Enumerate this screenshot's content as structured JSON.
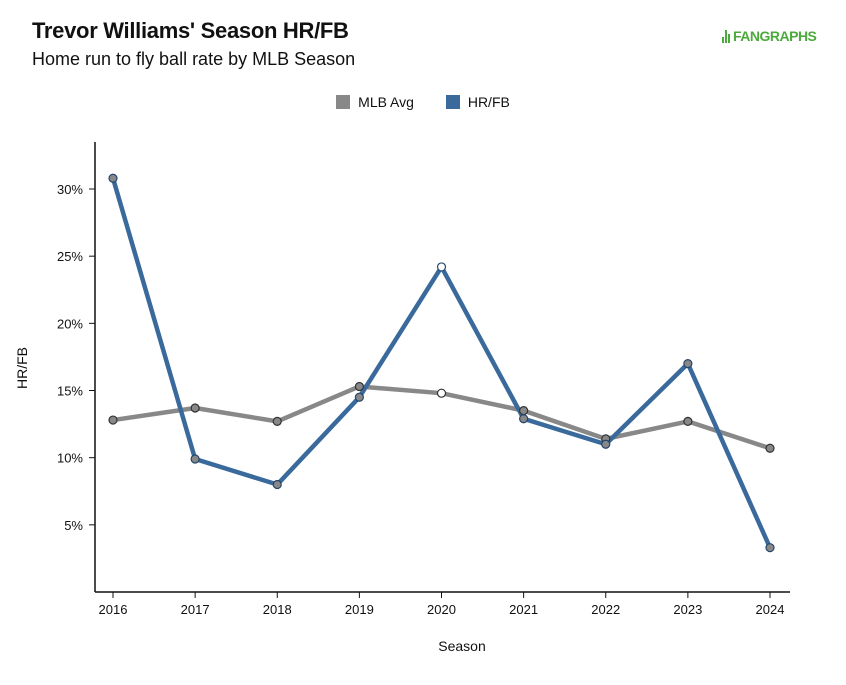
{
  "header": {
    "title": "Trevor Williams' Season HR/FB",
    "subtitle": "Home run to fly ball rate by MLB Season",
    "brand": "FANGRAPHS"
  },
  "colors": {
    "mlb_avg": "#888888",
    "hr_fb": "#3a6a9c",
    "point_fill": "#888888",
    "point_hollow": "#ffffff",
    "axis": "#111111"
  },
  "chart_data": {
    "type": "line",
    "title": "Trevor Williams' Season HR/FB",
    "subtitle": "Home run to fly ball rate by MLB Season",
    "xlabel": "Season",
    "ylabel": "HR/FB",
    "categories": [
      "2016",
      "2017",
      "2018",
      "2019",
      "2020",
      "2021",
      "2022",
      "2023",
      "2024"
    ],
    "ylim": [
      0,
      0.335
    ],
    "yticks": [
      0.05,
      0.1,
      0.15,
      0.2,
      0.25,
      0.3
    ],
    "ytick_labels": [
      "5%",
      "10%",
      "15%",
      "20%",
      "25%",
      "30%"
    ],
    "legend_position": "top-center",
    "grid": false,
    "series": [
      {
        "name": "MLB Avg",
        "values": [
          0.128,
          0.137,
          0.127,
          0.153,
          0.148,
          0.135,
          0.114,
          0.127,
          0.107
        ],
        "hollow": [
          4
        ]
      },
      {
        "name": "HR/FB",
        "values": [
          0.308,
          0.099,
          0.08,
          0.145,
          0.242,
          0.129,
          0.11,
          0.17,
          0.033
        ],
        "hollow": [
          4
        ]
      }
    ]
  }
}
